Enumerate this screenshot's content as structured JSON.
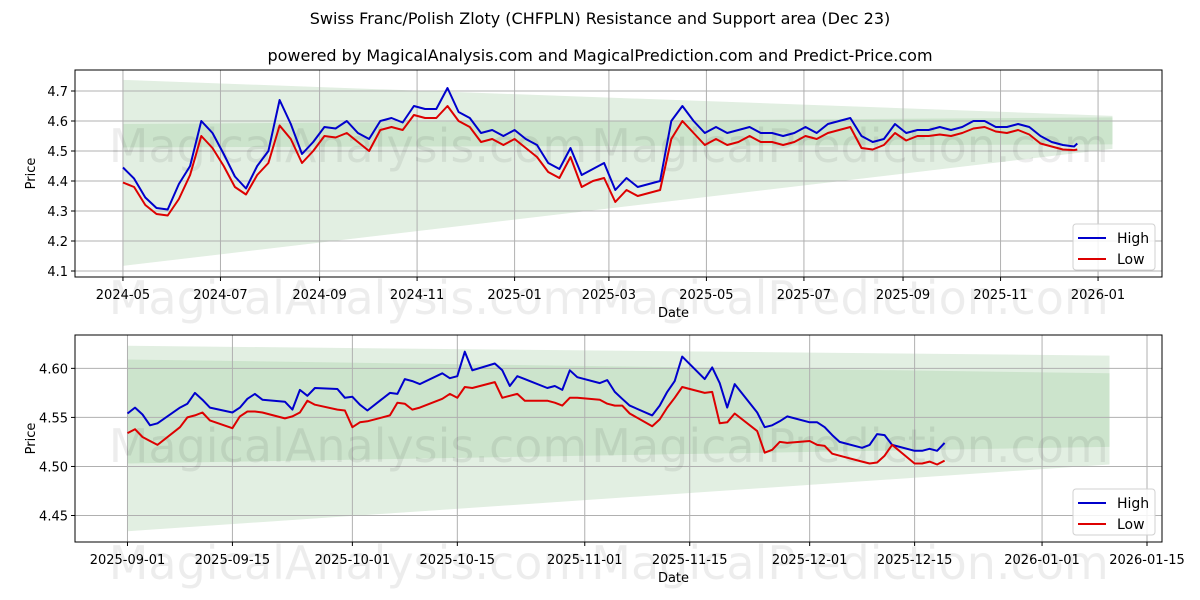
{
  "header": {
    "title": "Swiss Franc/Polish Zloty (CHFPLN) Resistance and Support area (Dec 23)",
    "subtitle": "powered by MagicalAnalysis.com and MagicalPrediction.com and Predict-Price.com"
  },
  "watermarks": [
    "MagicalAnalysis.com",
    "MagicalPrediction.com"
  ],
  "colors": {
    "high": "#0000cc",
    "low": "#dd0000",
    "band_outer": "#e2efe2",
    "band_inner": "#cce4cc",
    "grid": "#b0b0b0"
  },
  "chart_data": [
    {
      "type": "line",
      "title": "Swiss Franc/Polish Zloty (CHFPLN) Resistance and Support area (Dec 23)",
      "xlabel": "Date",
      "ylabel": "Price",
      "ylim": [
        4.08,
        4.77
      ],
      "xlim": [
        "2024-04-01",
        "2026-02-10"
      ],
      "grid": true,
      "legend_position": "lower right",
      "legend": [
        "High",
        "Low"
      ],
      "yticks": [
        "4.1",
        "4.2",
        "4.3",
        "4.4",
        "4.5",
        "4.6",
        "4.7"
      ],
      "xticks": [
        "2024-05",
        "2024-07",
        "2024-09",
        "2024-11",
        "2025-01",
        "2025-03",
        "2025-05",
        "2025-07",
        "2025-09",
        "2025-11",
        "2026-01"
      ],
      "bands": {
        "x_start": "2024-05-01",
        "x_end": "2026-01-10",
        "outer": {
          "top": [
            4.737,
            4.617
          ],
          "bottom": [
            4.117,
            4.507
          ]
        },
        "inner": {
          "top": [
            4.59,
            4.612
          ],
          "bottom": [
            4.512,
            4.522
          ]
        }
      },
      "x": [
        "2024-05-01",
        "2024-05-08",
        "2024-05-15",
        "2024-05-22",
        "2024-05-29",
        "2024-06-05",
        "2024-06-12",
        "2024-06-19",
        "2024-06-26",
        "2024-07-03",
        "2024-07-10",
        "2024-07-17",
        "2024-07-24",
        "2024-07-31",
        "2024-08-07",
        "2024-08-14",
        "2024-08-21",
        "2024-08-28",
        "2024-09-04",
        "2024-09-11",
        "2024-09-18",
        "2024-09-25",
        "2024-10-02",
        "2024-10-09",
        "2024-10-16",
        "2024-10-23",
        "2024-10-30",
        "2024-11-06",
        "2024-11-13",
        "2024-11-20",
        "2024-11-27",
        "2024-12-04",
        "2024-12-11",
        "2024-12-18",
        "2024-12-25",
        "2025-01-01",
        "2025-01-08",
        "2025-01-15",
        "2025-01-22",
        "2025-01-29",
        "2025-02-05",
        "2025-02-12",
        "2025-02-19",
        "2025-02-26",
        "2025-03-05",
        "2025-03-12",
        "2025-03-19",
        "2025-03-26",
        "2025-04-02",
        "2025-04-09",
        "2025-04-16",
        "2025-04-23",
        "2025-04-30",
        "2025-05-07",
        "2025-05-14",
        "2025-05-21",
        "2025-05-28",
        "2025-06-04",
        "2025-06-11",
        "2025-06-18",
        "2025-06-25",
        "2025-07-02",
        "2025-07-09",
        "2025-07-16",
        "2025-07-23",
        "2025-07-30",
        "2025-08-06",
        "2025-08-13",
        "2025-08-20",
        "2025-08-27",
        "2025-09-03",
        "2025-09-10",
        "2025-09-17",
        "2025-09-24",
        "2025-10-01",
        "2025-10-08",
        "2025-10-15",
        "2025-10-22",
        "2025-10-29",
        "2025-11-05",
        "2025-11-12",
        "2025-11-19",
        "2025-11-26",
        "2025-12-03",
        "2025-12-10",
        "2025-12-17",
        "2025-12-19"
      ],
      "series": [
        {
          "name": "High",
          "values": [
            4.445,
            4.408,
            4.345,
            4.31,
            4.305,
            4.39,
            4.45,
            4.6,
            4.56,
            4.49,
            4.415,
            4.375,
            4.45,
            4.5,
            4.67,
            4.59,
            4.49,
            4.53,
            4.58,
            4.575,
            4.6,
            4.56,
            4.54,
            4.6,
            4.61,
            4.595,
            4.65,
            4.64,
            4.64,
            4.71,
            4.63,
            4.61,
            4.56,
            4.57,
            4.55,
            4.57,
            4.54,
            4.52,
            4.46,
            4.44,
            4.51,
            4.42,
            4.44,
            4.46,
            4.37,
            4.41,
            4.38,
            4.39,
            4.4,
            4.6,
            4.65,
            4.6,
            4.56,
            4.58,
            4.56,
            4.57,
            4.58,
            4.56,
            4.56,
            4.55,
            4.56,
            4.58,
            4.56,
            4.59,
            4.6,
            4.61,
            4.55,
            4.53,
            4.54,
            4.59,
            4.56,
            4.57,
            4.57,
            4.58,
            4.57,
            4.58,
            4.6,
            4.6,
            4.58,
            4.58,
            4.59,
            4.58,
            4.55,
            4.53,
            4.52,
            4.515,
            4.525
          ]
        },
        {
          "name": "Low",
          "values": [
            4.395,
            4.38,
            4.32,
            4.29,
            4.285,
            4.34,
            4.42,
            4.55,
            4.51,
            4.45,
            4.38,
            4.355,
            4.42,
            4.46,
            4.585,
            4.54,
            4.46,
            4.5,
            4.55,
            4.545,
            4.56,
            4.53,
            4.5,
            4.57,
            4.58,
            4.57,
            4.62,
            4.61,
            4.61,
            4.65,
            4.6,
            4.58,
            4.53,
            4.54,
            4.52,
            4.54,
            4.51,
            4.48,
            4.43,
            4.41,
            4.48,
            4.38,
            4.4,
            4.41,
            4.33,
            4.37,
            4.35,
            4.36,
            4.37,
            4.54,
            4.6,
            4.56,
            4.52,
            4.54,
            4.52,
            4.53,
            4.55,
            4.53,
            4.53,
            4.52,
            4.53,
            4.55,
            4.54,
            4.56,
            4.57,
            4.58,
            4.51,
            4.505,
            4.52,
            4.56,
            4.535,
            4.55,
            4.55,
            4.555,
            4.55,
            4.56,
            4.575,
            4.58,
            4.565,
            4.56,
            4.57,
            4.555,
            4.525,
            4.515,
            4.505,
            4.503,
            4.505
          ]
        }
      ]
    },
    {
      "type": "line",
      "xlabel": "Date",
      "ylabel": "Price",
      "ylim": [
        4.423,
        4.634
      ],
      "xlim": [
        "2025-08-25",
        "2026-01-17"
      ],
      "grid": true,
      "legend_position": "lower right",
      "legend": [
        "High",
        "Low"
      ],
      "yticks": [
        "4.45",
        "4.50",
        "4.55",
        "4.60"
      ],
      "xticks": [
        "2025-09-01",
        "2025-09-15",
        "2025-10-01",
        "2025-10-15",
        "2025-11-01",
        "2025-11-15",
        "2025-12-01",
        "2025-12-15",
        "2026-01-01",
        "2026-01-15"
      ],
      "bands": {
        "x_start": "2025-09-01",
        "x_end": "2026-01-10",
        "outer": {
          "top": [
            4.623,
            4.613
          ],
          "bottom": [
            4.434,
            4.502
          ]
        },
        "inner": {
          "top": [
            4.609,
            4.595
          ],
          "bottom": [
            4.503,
            4.52
          ]
        }
      },
      "x": [
        "2025-09-01",
        "2025-09-02",
        "2025-09-03",
        "2025-09-04",
        "2025-09-05",
        "2025-09-08",
        "2025-09-09",
        "2025-09-10",
        "2025-09-11",
        "2025-09-12",
        "2025-09-15",
        "2025-09-16",
        "2025-09-17",
        "2025-09-18",
        "2025-09-19",
        "2025-09-22",
        "2025-09-23",
        "2025-09-24",
        "2025-09-25",
        "2025-09-26",
        "2025-09-29",
        "2025-09-30",
        "2025-10-01",
        "2025-10-02",
        "2025-10-03",
        "2025-10-06",
        "2025-10-07",
        "2025-10-08",
        "2025-10-09",
        "2025-10-10",
        "2025-10-13",
        "2025-10-14",
        "2025-10-15",
        "2025-10-16",
        "2025-10-17",
        "2025-10-20",
        "2025-10-21",
        "2025-10-22",
        "2025-10-23",
        "2025-10-24",
        "2025-10-27",
        "2025-10-28",
        "2025-10-29",
        "2025-10-30",
        "2025-10-31",
        "2025-11-03",
        "2025-11-04",
        "2025-11-05",
        "2025-11-06",
        "2025-11-07",
        "2025-11-10",
        "2025-11-11",
        "2025-11-12",
        "2025-11-13",
        "2025-11-14",
        "2025-11-17",
        "2025-11-18",
        "2025-11-19",
        "2025-11-20",
        "2025-11-21",
        "2025-11-24",
        "2025-11-25",
        "2025-11-26",
        "2025-11-27",
        "2025-11-28",
        "2025-12-01",
        "2025-12-02",
        "2025-12-03",
        "2025-12-04",
        "2025-12-05",
        "2025-12-08",
        "2025-12-09",
        "2025-12-10",
        "2025-12-11",
        "2025-12-12",
        "2025-12-15",
        "2025-12-16",
        "2025-12-17",
        "2025-12-18",
        "2025-12-19"
      ],
      "series": [
        {
          "name": "High",
          "values": [
            4.554,
            4.56,
            4.553,
            4.542,
            4.544,
            4.56,
            4.564,
            4.575,
            4.568,
            4.56,
            4.555,
            4.56,
            4.569,
            4.574,
            4.568,
            4.566,
            4.558,
            4.578,
            4.572,
            4.58,
            4.579,
            4.57,
            4.571,
            4.563,
            4.557,
            4.575,
            4.574,
            4.589,
            4.587,
            4.584,
            4.595,
            4.59,
            4.592,
            4.617,
            4.598,
            4.605,
            4.598,
            4.582,
            4.592,
            4.589,
            4.58,
            4.582,
            4.578,
            4.598,
            4.591,
            4.585,
            4.588,
            4.576,
            4.569,
            4.562,
            4.552,
            4.562,
            4.576,
            4.587,
            4.612,
            4.589,
            4.601,
            4.585,
            4.56,
            4.584,
            4.555,
            4.54,
            4.542,
            4.546,
            4.551,
            4.545,
            4.545,
            4.54,
            4.532,
            4.525,
            4.519,
            4.522,
            4.533,
            4.532,
            4.522,
            4.516,
            4.516,
            4.518,
            4.516,
            4.524
          ]
        },
        {
          "name": "Low",
          "values": [
            4.534,
            4.538,
            4.53,
            4.526,
            4.522,
            4.54,
            4.55,
            4.552,
            4.555,
            4.547,
            4.539,
            4.551,
            4.556,
            4.556,
            4.555,
            4.549,
            4.551,
            4.555,
            4.567,
            4.563,
            4.558,
            4.557,
            4.54,
            4.545,
            4.546,
            4.552,
            4.565,
            4.564,
            4.558,
            4.56,
            4.569,
            4.574,
            4.57,
            4.581,
            4.58,
            4.586,
            4.57,
            4.572,
            4.574,
            4.567,
            4.567,
            4.565,
            4.562,
            4.57,
            4.57,
            4.568,
            4.564,
            4.562,
            4.562,
            4.554,
            4.541,
            4.548,
            4.56,
            4.57,
            4.581,
            4.575,
            4.576,
            4.544,
            4.545,
            4.554,
            4.536,
            4.514,
            4.517,
            4.525,
            4.524,
            4.526,
            4.522,
            4.521,
            4.513,
            4.511,
            4.505,
            4.503,
            4.504,
            4.511,
            4.522,
            4.503,
            4.503,
            4.505,
            4.502,
            4.506
          ]
        }
      ]
    }
  ]
}
